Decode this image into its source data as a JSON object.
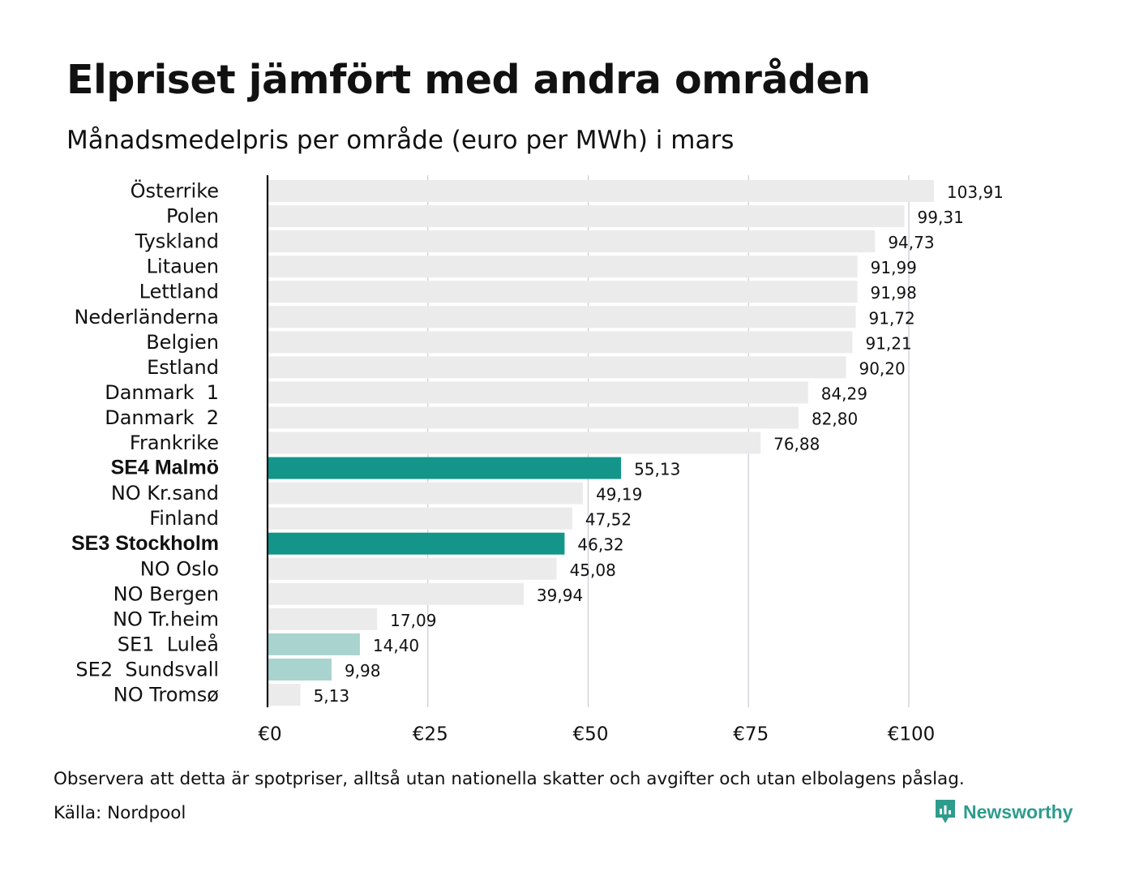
{
  "header": {
    "title": "Elpriset jämfört med andra områden",
    "subtitle": "Månadsmedelpris per område (euro per MWh) i mars"
  },
  "colors": {
    "default_bar": "#ebebeb",
    "highlight_bar": "#13958a",
    "light_highlight_bar": "#a8d3ce",
    "gridline": "#c9ccd8",
    "axis": "#111111",
    "brand": "#2e9c8c"
  },
  "chart_data": {
    "type": "bar",
    "orientation": "horizontal",
    "title": "Elpriset jämfört med andra områden",
    "subtitle": "Månadsmedelpris per område (euro per MWh) i mars",
    "xlim": [
      0,
      110
    ],
    "xticks": [
      0,
      25,
      50,
      75,
      100
    ],
    "xtick_labels": [
      "€0",
      "€25",
      "€50",
      "€75",
      "€100"
    ],
    "grid": true,
    "legend": "none",
    "categories": [
      "Österrike",
      "Polen",
      "Tyskland",
      "Litauen",
      "Lettland",
      "Nederländerna",
      "Belgien",
      "Estland",
      "Danmark  1",
      "Danmark  2",
      "Frankrike",
      "SE4 Malmö",
      "NO Kr.sand",
      "Finland",
      "SE3 Stockholm",
      "NO Oslo",
      "NO Bergen",
      "NO Tr.heim",
      "SE1  Luleå",
      "SE2  Sundsvall",
      "NO Tromsø"
    ],
    "values": [
      103.91,
      99.31,
      94.73,
      91.99,
      91.98,
      91.72,
      91.21,
      90.2,
      84.29,
      82.8,
      76.88,
      55.13,
      49.19,
      47.52,
      46.32,
      45.08,
      39.94,
      17.09,
      14.4,
      9.98,
      5.13
    ],
    "value_labels": [
      "103,91",
      "99,31",
      "94,73",
      "91,99",
      "91,98",
      "91,72",
      "91,21",
      "90,20",
      "84,29",
      "82,80",
      "76,88",
      "55,13",
      "49,19",
      "47,52",
      "46,32",
      "45,08",
      "39,94",
      "17,09",
      "14,40",
      "9,98",
      "5,13"
    ],
    "bar_style": [
      "default",
      "default",
      "default",
      "default",
      "default",
      "default",
      "default",
      "default",
      "default",
      "default",
      "default",
      "highlight",
      "default",
      "default",
      "highlight",
      "default",
      "default",
      "default",
      "light",
      "light",
      "default"
    ],
    "bold_labels": [
      false,
      false,
      false,
      false,
      false,
      false,
      false,
      false,
      false,
      false,
      false,
      true,
      false,
      false,
      true,
      false,
      false,
      false,
      false,
      false,
      false
    ]
  },
  "footer": {
    "note": "Observera att detta är spotpriser, alltså utan nationella skatter och avgifter och utan elbolagens påslag.",
    "source": "Källa: Nordpool",
    "brand": "Newsworthy",
    "brand_icon": "newsworthy-logo-icon"
  }
}
